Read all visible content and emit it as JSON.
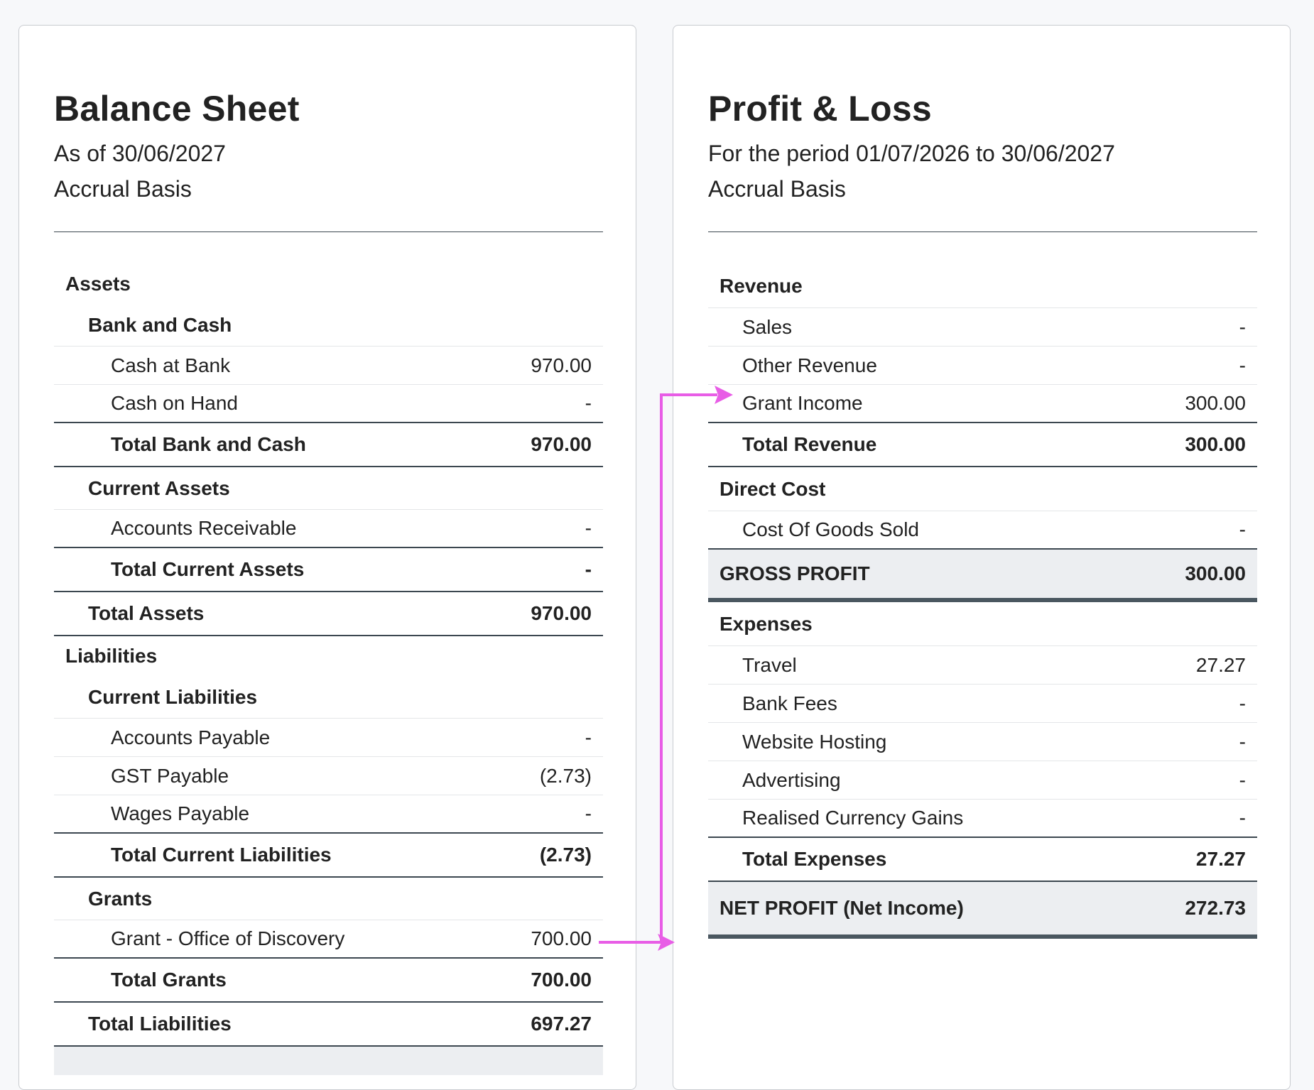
{
  "balance_sheet": {
    "title": "Balance Sheet",
    "as_of": "As of 30/06/2027",
    "basis": "Accrual Basis",
    "assets_label": "Assets",
    "bank_cash_label": "Bank and Cash",
    "cash_at_bank": {
      "label": "Cash at Bank",
      "value": "970.00"
    },
    "cash_on_hand": {
      "label": "Cash on Hand",
      "value": "-"
    },
    "total_bank_cash": {
      "label": "Total Bank and Cash",
      "value": "970.00"
    },
    "current_assets_label": "Current Assets",
    "accounts_receivable": {
      "label": "Accounts Receivable",
      "value": "-"
    },
    "total_current_assets": {
      "label": "Total Current Assets",
      "value": "-"
    },
    "total_assets": {
      "label": "Total Assets",
      "value": "970.00"
    },
    "liabilities_label": "Liabilities",
    "current_liabilities_label": "Current Liabilities",
    "accounts_payable": {
      "label": "Accounts Payable",
      "value": "-"
    },
    "gst_payable": {
      "label": "GST Payable",
      "value": "(2.73)"
    },
    "wages_payable": {
      "label": "Wages Payable",
      "value": "-"
    },
    "total_current_liabilities": {
      "label": "Total Current Liabilities",
      "value": "(2.73)"
    },
    "grants_label": "Grants",
    "grant_office": {
      "label": "Grant - Office of Discovery",
      "value": "700.00"
    },
    "total_grants": {
      "label": "Total Grants",
      "value": "700.00"
    },
    "total_liabilities": {
      "label": "Total Liabilities",
      "value": "697.27"
    }
  },
  "profit_loss": {
    "title": "Profit & Loss",
    "period": "For the period 01/07/2026 to 30/06/2027",
    "basis": "Accrual Basis",
    "revenue_label": "Revenue",
    "sales": {
      "label": "Sales",
      "value": "-"
    },
    "other_revenue": {
      "label": "Other Revenue",
      "value": "-"
    },
    "grant_income": {
      "label": "Grant Income",
      "value": "300.00"
    },
    "total_revenue": {
      "label": "Total Revenue",
      "value": "300.00"
    },
    "direct_cost_label": "Direct Cost",
    "cogs": {
      "label": "Cost Of Goods Sold",
      "value": "-"
    },
    "gross_profit": {
      "label": "GROSS PROFIT",
      "value": "300.00"
    },
    "expenses_label": "Expenses",
    "travel": {
      "label": "Travel",
      "value": "27.27"
    },
    "bank_fees": {
      "label": "Bank Fees",
      "value": "-"
    },
    "website_hosting": {
      "label": "Website Hosting",
      "value": "-"
    },
    "advertising": {
      "label": "Advertising",
      "value": "-"
    },
    "currency_gains": {
      "label": "Realised Currency Gains",
      "value": "-"
    },
    "total_expenses": {
      "label": "Total Expenses",
      "value": "27.27"
    },
    "net_profit": {
      "label": "NET PROFIT (Net Income)",
      "value": "272.73"
    }
  },
  "annotation": {
    "arrow_color": "#e85de6"
  }
}
